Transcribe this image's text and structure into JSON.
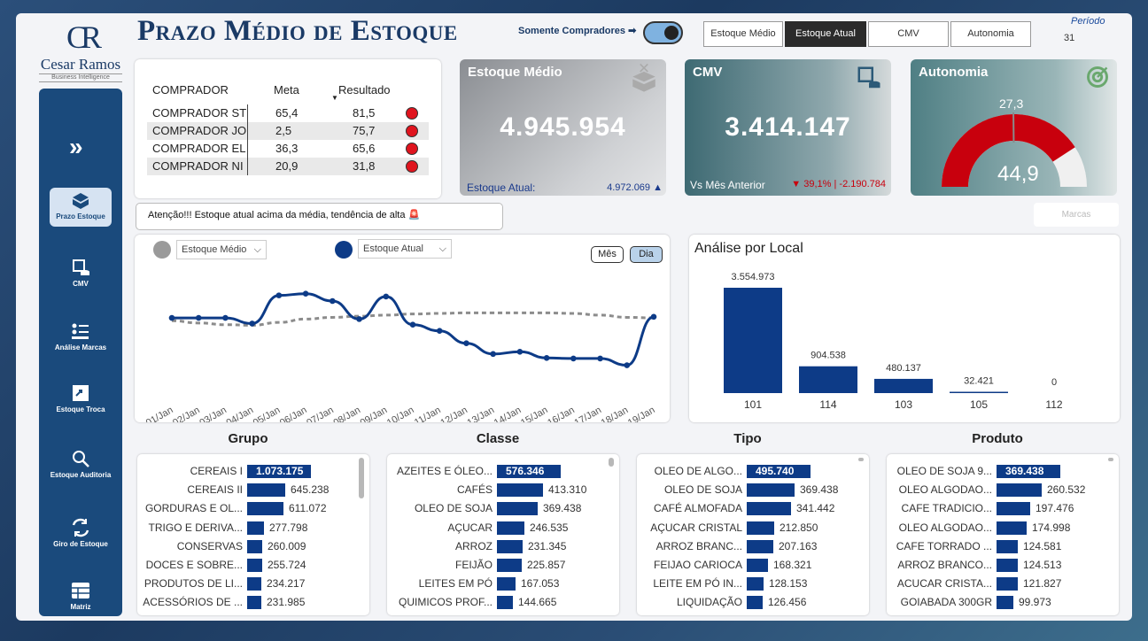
{
  "header": {
    "title": "Prazo Médio de Estoque",
    "toggle_label": "Somente Compradores ➡",
    "periodo_label": "Período",
    "periodo_value": "31"
  },
  "tabs": [
    {
      "label": "Estoque Médio"
    },
    {
      "label": "Estoque Atual"
    },
    {
      "label": "CMV"
    },
    {
      "label": "Autonomia"
    }
  ],
  "logo": {
    "initials": "CR",
    "name": "Cesar Ramos",
    "sub": "Business Intelligence"
  },
  "sidebar": {
    "items": [
      {
        "label": "Prazo Estoque"
      },
      {
        "label": "CMV"
      },
      {
        "label": "Análise Marcas"
      },
      {
        "label": "Estoque Troca"
      },
      {
        "label": "Estoque Auditoria"
      },
      {
        "label": "Giro de Estoque"
      },
      {
        "label": "Matriz"
      }
    ]
  },
  "buyers": {
    "headers": [
      "COMPRADOR",
      "Meta",
      "Resultado"
    ],
    "rows": [
      [
        "COMPRADOR ST",
        "65,4",
        "81,5"
      ],
      [
        "COMPRADOR JO",
        "2,5",
        "75,7"
      ],
      [
        "COMPRADOR EL",
        "36,3",
        "65,6"
      ],
      [
        "COMPRADOR NI",
        "20,9",
        "31,8"
      ]
    ]
  },
  "alert": "Atenção!!! Estoque atual acima da média, tendência de alta 🚨",
  "kpi": {
    "medio": {
      "title": "Estoque Médio",
      "value": "4.945.954",
      "foot_label": "Estoque Atual:",
      "foot_value": "4.972.069 ▲"
    },
    "cmv": {
      "title": "CMV",
      "value": "3.414.147",
      "foot_label": "Vs Mês Anterior",
      "foot_value": "▼ 39,1% | -2.190.784"
    },
    "autonomia": {
      "title": "Autonomia",
      "target": "27,3",
      "value": "44,9"
    }
  },
  "marcas_label": "Marcas",
  "colors": {
    "accent": "#0d3b87",
    "alert": "#c8000d",
    "nav": "#1a4a7c"
  },
  "line_chart": {
    "legend_medio": "Estoque Médio",
    "legend_atual": "Estoque Atual",
    "btn_mes": "Mês",
    "btn_dia": "Dia",
    "chart_data": {
      "type": "line",
      "x": [
        "01/Jan",
        "02/Jan",
        "03/Jan",
        "04/Jan",
        "05/Jan",
        "06/Jan",
        "07/Jan",
        "08/Jan",
        "09/Jan",
        "10/Jan",
        "11/Jan",
        "12/Jan",
        "13/Jan",
        "14/Jan",
        "15/Jan",
        "16/Jan",
        "17/Jan",
        "18/Jan",
        "19/Jan"
      ],
      "series": [
        {
          "name": "Estoque Atual",
          "values": [
            4.95,
            4.95,
            4.95,
            4.85,
            5.35,
            5.38,
            5.25,
            4.93,
            5.33,
            4.83,
            4.72,
            4.5,
            4.31,
            4.35,
            4.24,
            4.23,
            4.23,
            4.11,
            4.97
          ]
        },
        {
          "name": "Estoque Médio",
          "values": [
            4.9,
            4.86,
            4.83,
            4.82,
            4.87,
            4.93,
            4.96,
            4.98,
            5.0,
            5.02,
            5.03,
            5.04,
            5.04,
            5.04,
            5.04,
            5.03,
            5.0,
            4.96,
            4.95
          ]
        }
      ],
      "ylim": [
        3.6,
        5.8
      ]
    }
  },
  "local": {
    "title": "Análise por Local",
    "chart_data": {
      "type": "bar",
      "categories": [
        "101",
        "114",
        "103",
        "105",
        "112"
      ],
      "values": [
        3554973,
        904538,
        480137,
        32421,
        0
      ],
      "labels": [
        "3.554.973",
        "904.538",
        "480.137",
        "32.421",
        "0"
      ]
    }
  },
  "panels": [
    {
      "title": "Grupo",
      "rows": [
        [
          "CEREAIS I",
          "1.073.175",
          1073175
        ],
        [
          "CEREAIS II",
          "645.238",
          645238
        ],
        [
          "GORDURAS E OL...",
          "611.072",
          611072
        ],
        [
          "TRIGO E DERIVA...",
          "277.798",
          277798
        ],
        [
          "CONSERVAS",
          "260.009",
          260009
        ],
        [
          "DOCES E SOBRE...",
          "255.724",
          255724
        ],
        [
          "PRODUTOS DE LI...",
          "234.217",
          234217
        ],
        [
          "ACESSÓRIOS DE ...",
          "231.985",
          231985
        ]
      ]
    },
    {
      "title": "Classe",
      "rows": [
        [
          "AZEITES E ÓLEO...",
          "576.346",
          576346
        ],
        [
          "CAFÉS",
          "413.310",
          413310
        ],
        [
          "OLEO DE SOJA",
          "369.438",
          369438
        ],
        [
          "AÇUCAR",
          "246.535",
          246535
        ],
        [
          "ARROZ",
          "231.345",
          231345
        ],
        [
          "FEIJÃO",
          "225.857",
          225857
        ],
        [
          "LEITES EM PÓ",
          "167.053",
          167053
        ],
        [
          "QUIMICOS PROF...",
          "144.665",
          144665
        ]
      ]
    },
    {
      "title": "Tipo",
      "rows": [
        [
          "OLEO DE ALGO...",
          "495.740",
          495740
        ],
        [
          "OLEO DE SOJA",
          "369.438",
          369438
        ],
        [
          "CAFÉ ALMOFADA",
          "341.442",
          341442
        ],
        [
          "AÇUCAR CRISTAL",
          "212.850",
          212850
        ],
        [
          "ARROZ BRANC...",
          "207.163",
          207163
        ],
        [
          "FEIJAO CARIOCA",
          "168.321",
          168321
        ],
        [
          "LEITE EM PÓ IN...",
          "128.153",
          128153
        ],
        [
          "LIQUIDAÇÃO",
          "126.456",
          126456
        ]
      ]
    },
    {
      "title": "Produto",
      "rows": [
        [
          "OLEO DE SOJA 9...",
          "369.438",
          369438
        ],
        [
          "OLEO ALGODAO...",
          "260.532",
          260532
        ],
        [
          "CAFE TRADICIO...",
          "197.476",
          197476
        ],
        [
          "OLEO ALGODAO...",
          "174.998",
          174998
        ],
        [
          "CAFE TORRADO ...",
          "124.581",
          124581
        ],
        [
          "ARROZ BRANCO...",
          "124.513",
          124513
        ],
        [
          "ACUCAR CRISTA...",
          "121.827",
          121827
        ],
        [
          "GOIABADA 300GR",
          "99.973",
          99973
        ]
      ]
    }
  ]
}
